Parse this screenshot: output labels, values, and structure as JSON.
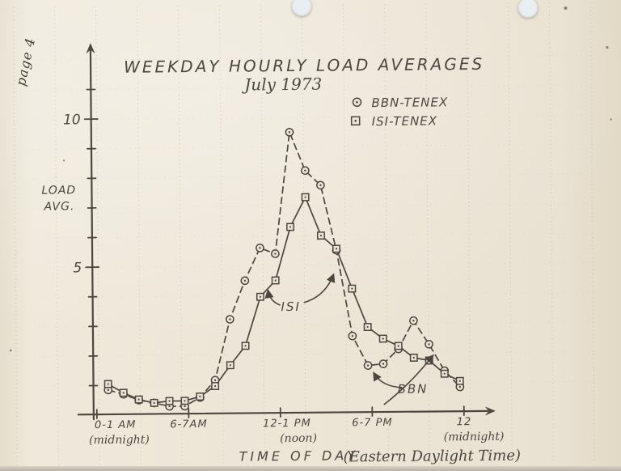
{
  "page": {
    "page_number": "page 4"
  },
  "paper": {
    "background": "#ece5d7",
    "ink": "#413d37",
    "hole_color": "#e9eef3"
  },
  "chart_data": {
    "type": "line",
    "title": "WEEKDAY HOURLY LOAD AVERAGES",
    "subtitle": "July 1973",
    "ylabel_lines": [
      "LOAD",
      "AVG."
    ],
    "xlabel": "TIME OF DAY",
    "xlabel_note": "(Eastern Daylight Time)",
    "ylim": [
      0,
      12.5
    ],
    "y_minor_step": 1,
    "y_ticks_labeled": [
      5,
      10
    ],
    "x_axis_hours": 24,
    "x_ticks": [
      {
        "hour": 0,
        "label": "0-1 AM",
        "sublabel": "(midnight)"
      },
      {
        "hour": 6,
        "label": "6-7AM",
        "sublabel": ""
      },
      {
        "hour": 12,
        "label": "12-1 PM",
        "sublabel": "(noon)"
      },
      {
        "hour": 18,
        "label": "6-7 PM",
        "sublabel": ""
      },
      {
        "hour": 24,
        "label": "12",
        "sublabel": "(midnight)"
      }
    ],
    "legend_position": "top-right",
    "series": [
      {
        "name": "BBN-TENEX",
        "marker": "circle",
        "line_style": "dashed",
        "hours": [
          0,
          1,
          2,
          3,
          4,
          5,
          6,
          7,
          8,
          9,
          10,
          11,
          12,
          13,
          14,
          15,
          16,
          17,
          18,
          19,
          20,
          21,
          22,
          23
        ],
        "values": [
          0.85,
          0.7,
          0.5,
          0.4,
          0.28,
          0.28,
          0.57,
          1.15,
          3.2,
          4.5,
          5.6,
          5.4,
          9.5,
          8.2,
          7.7,
          5.5,
          2.6,
          1.6,
          1.65,
          2.15,
          3.1,
          2.3,
          1.4,
          0.85
        ]
      },
      {
        "name": "ISI-TENEX",
        "marker": "square",
        "line_style": "solid",
        "hours": [
          0,
          1,
          2,
          3,
          4,
          5,
          6,
          7,
          8,
          9,
          10,
          11,
          12,
          13,
          14,
          15,
          16,
          17,
          18,
          19,
          20,
          21,
          22,
          23
        ],
        "values": [
          1.05,
          0.75,
          0.52,
          0.4,
          0.46,
          0.46,
          0.6,
          0.95,
          1.65,
          2.3,
          3.95,
          4.5,
          6.3,
          7.3,
          6.0,
          5.55,
          4.2,
          2.9,
          2.5,
          2.25,
          1.85,
          1.75,
          1.3,
          1.05
        ]
      }
    ],
    "annotations": [
      {
        "label": "ISI",
        "points_to": "ISI-TENEX curve"
      },
      {
        "label": "BBN",
        "points_to": "BBN-TENEX curve"
      }
    ]
  }
}
